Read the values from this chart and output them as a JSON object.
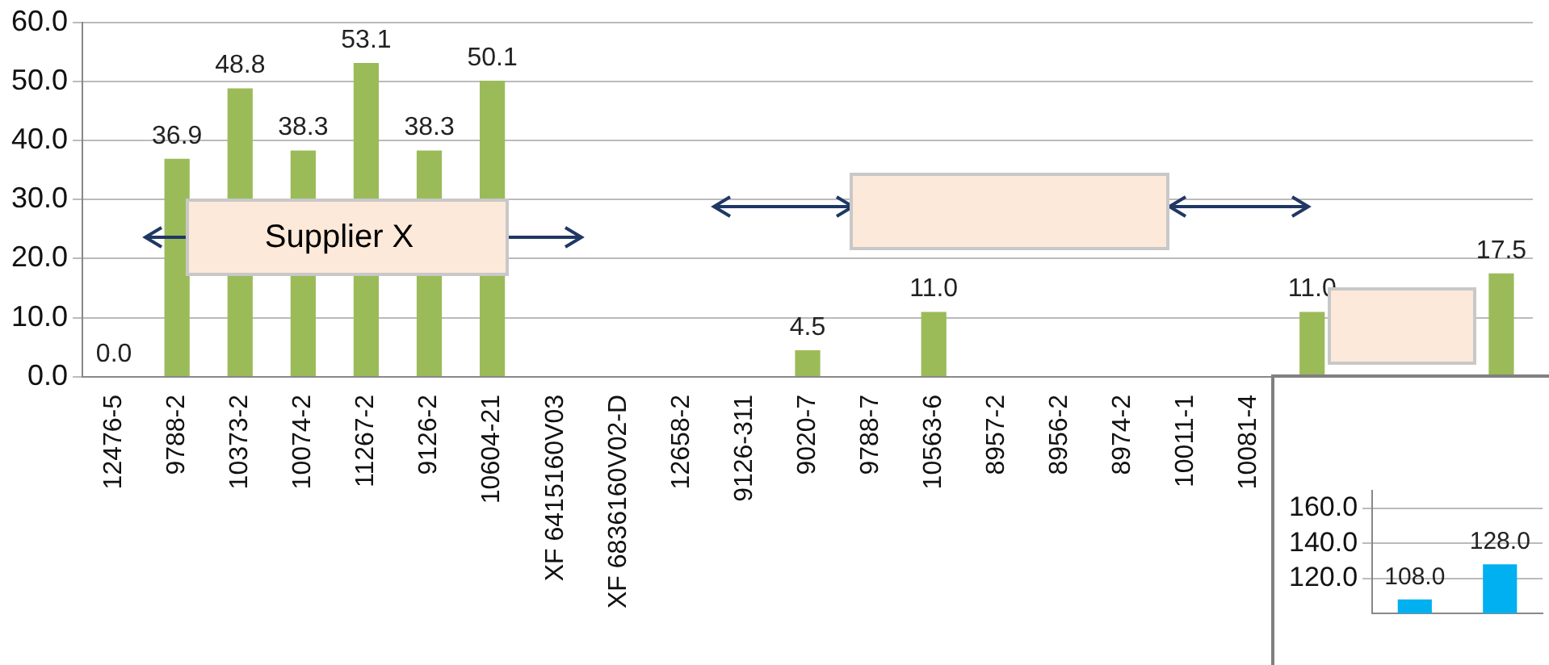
{
  "chart_data": [
    {
      "type": "bar",
      "categories": [
        "12476-5",
        "9788-2",
        "10373-2",
        "10074-2",
        "11267-2",
        "9126-2",
        "10604-21",
        "XF 6415160V03",
        "XF 6836160V02-D",
        "12658-2",
        "9126-311",
        "9020-7",
        "9788-7",
        "10563-6",
        "8957-2",
        "8956-2",
        "8974-2",
        "10011-1",
        "10081-4",
        null,
        null,
        null,
        null
      ],
      "values": [
        0,
        36.9,
        48.8,
        38.3,
        53.1,
        38.3,
        50.1,
        null,
        null,
        null,
        null,
        4.5,
        null,
        11.0,
        null,
        null,
        null,
        null,
        null,
        11.0,
        null,
        null,
        17.5
      ],
      "value_labels": [
        "0.0",
        "36.9",
        "48.8",
        "38.3",
        "53.1",
        "38.3",
        "50.1",
        null,
        null,
        null,
        null,
        "4.5",
        null,
        "11.0",
        null,
        null,
        null,
        null,
        null,
        "11.0",
        null,
        null,
        "17.5"
      ],
      "color": "#9bbb59",
      "ylim": [
        0,
        60
      ],
      "yticks": [
        {
          "value": 0,
          "label": "0.0"
        },
        {
          "value": 10,
          "label": "10.0"
        },
        {
          "value": 20,
          "label": "20.0"
        },
        {
          "value": 30,
          "label": "30.0"
        },
        {
          "value": 40,
          "label": "40.0"
        },
        {
          "value": 50,
          "label": "50.0"
        },
        {
          "value": 60,
          "label": "60.0"
        }
      ],
      "grid": "y",
      "annotations": [
        "Supplier X"
      ]
    },
    {
      "type": "bar",
      "categories": [
        null,
        null
      ],
      "values": [
        108,
        128
      ],
      "value_labels": [
        "108.0",
        "128.0"
      ],
      "color": "#00b0f0",
      "ylim": [
        100,
        170
      ],
      "yticks": [
        {
          "value": 120,
          "label": "120.0"
        },
        {
          "value": 140,
          "label": "140.0"
        },
        {
          "value": 160,
          "label": "160.0"
        }
      ],
      "grid": "y"
    }
  ]
}
